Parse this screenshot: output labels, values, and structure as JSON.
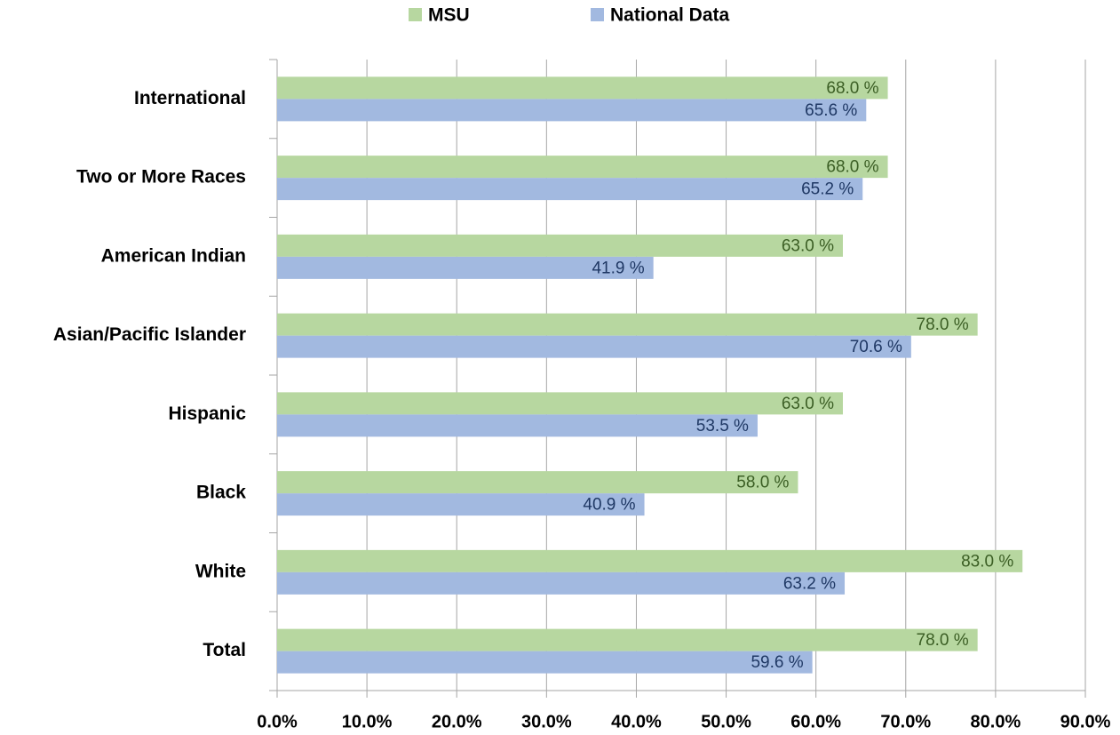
{
  "chart_data": {
    "type": "hbar",
    "categories": [
      "International",
      "Two or More Races",
      "American Indian",
      "Asian/Pacific Islander",
      "Hispanic",
      "Black",
      "White",
      "Total"
    ],
    "series": [
      {
        "name": "MSU",
        "color": "#b7d7a0",
        "values": [
          68,
          68,
          63,
          78,
          63,
          58,
          83,
          78
        ],
        "value_labels": [
          "68.0  %",
          "68.0 %",
          "63.0 %",
          "78.0 %",
          "63.0 %",
          "58.0 %",
          "83.0 %",
          "78.0 %"
        ]
      },
      {
        "name": "National Data",
        "color": "#a2b9e0",
        "values": [
          65.6,
          65.2,
          41.9,
          70.6,
          53.5,
          40.9,
          63.2,
          59.6
        ],
        "value_labels": [
          "65.6 %",
          "65.2 %",
          "41.9 %",
          "70.6 %",
          "53.5 %",
          "40.9 %",
          "63.2 %",
          "59.6 %"
        ]
      }
    ],
    "xlim": [
      0,
      90
    ],
    "xticks": [
      {
        "value": 0,
        "label": "0.0%"
      },
      {
        "value": 10,
        "label": "10.0%"
      },
      {
        "value": 20,
        "label": "20.0%"
      },
      {
        "value": 30,
        "label": "30.0%"
      },
      {
        "value": 40,
        "label": "40.0%"
      },
      {
        "value": 50,
        "label": "50.0%"
      },
      {
        "value": 60,
        "label": "60.0%"
      },
      {
        "value": 70,
        "label": "70.0%"
      },
      {
        "value": 80,
        "label": "80.0%"
      },
      {
        "value": 90,
        "label": "90.0%"
      }
    ],
    "grid": true,
    "legend": "top"
  }
}
